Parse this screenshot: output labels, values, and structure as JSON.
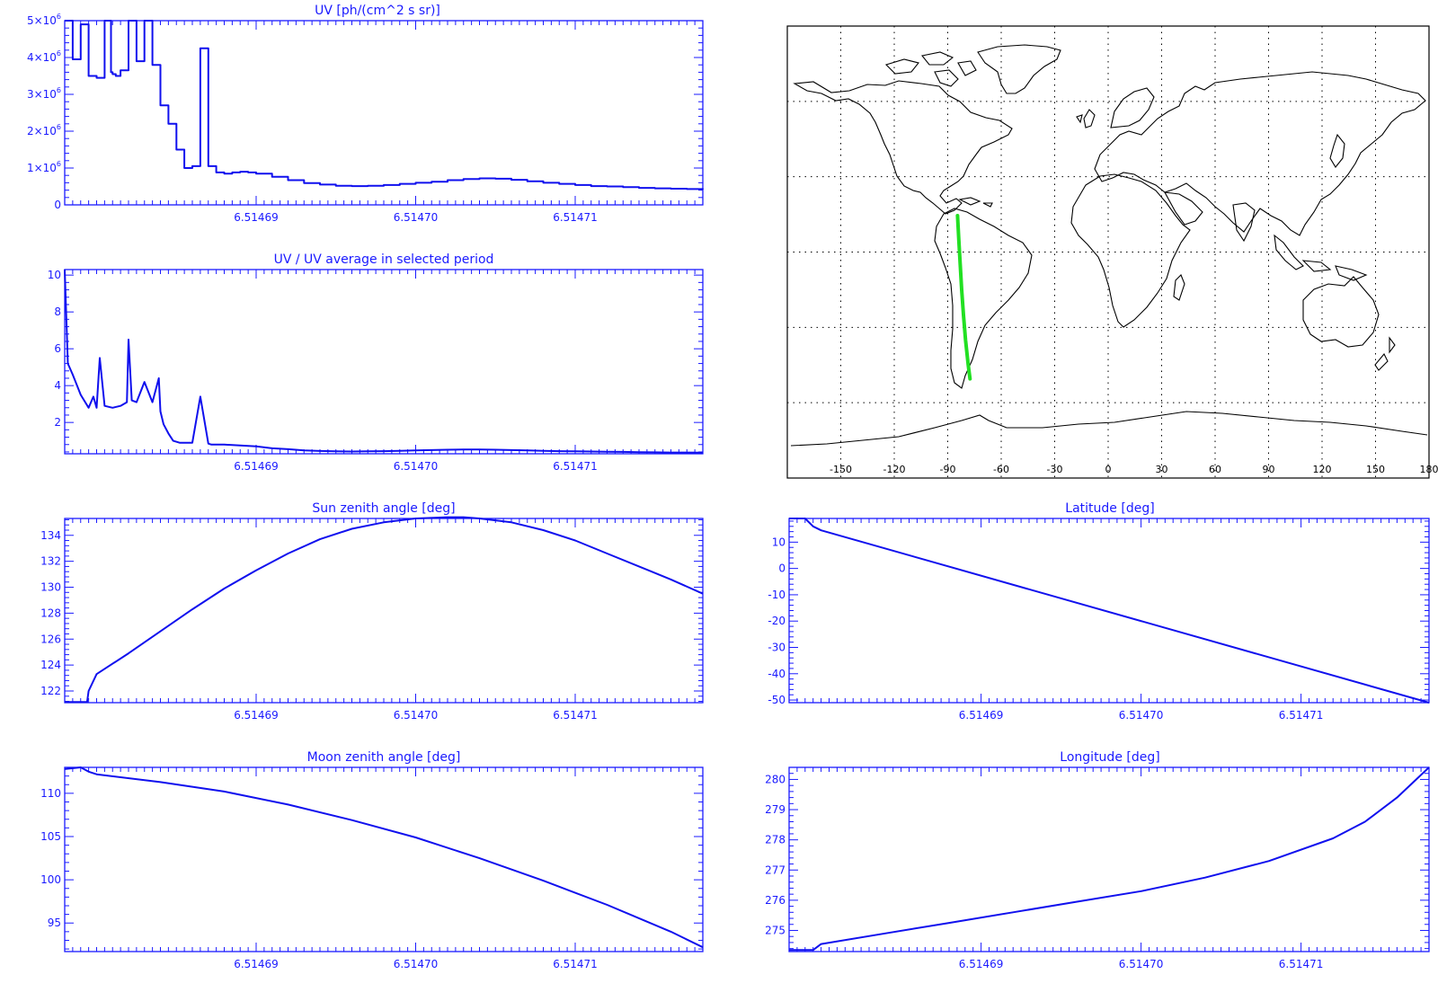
{
  "colors": {
    "axis": "#1a1aff",
    "line": "#1010ee",
    "map_line": "#000000",
    "track": "#22e022",
    "background": "#ffffff"
  },
  "chart_data": [
    {
      "id": "uv",
      "type": "line",
      "title": "UV [ph/(cm^2 s sr)]",
      "xlim": [
        6.514678,
        6.514718
      ],
      "ylim": [
        0,
        5000000
      ],
      "xticks": [
        6.51469,
        6.5147,
        6.51471
      ],
      "xtick_labels": [
        "6.51469",
        "6.51470",
        "6.51471"
      ],
      "yticks": [
        0,
        1000000,
        2000000,
        3000000,
        4000000,
        5000000
      ],
      "ytick_labels": [
        {
          "base": "0",
          "exp": ""
        },
        {
          "base": "1×10",
          "exp": "6"
        },
        {
          "base": "2×10",
          "exp": "6"
        },
        {
          "base": "3×10",
          "exp": "6"
        },
        {
          "base": "4×10",
          "exp": "6"
        },
        {
          "base": "5×10",
          "exp": "6"
        }
      ],
      "step": true,
      "series": [
        {
          "x": [
            6.514678,
            6.5146785,
            6.514679,
            6.5146795,
            6.51468,
            6.5146805,
            6.5146809,
            6.514681,
            6.5146812,
            6.5146815,
            6.514682,
            6.5146825,
            6.514683,
            6.5146835,
            6.514684,
            6.5146845,
            6.514685,
            6.5146855,
            6.514686,
            6.5146865,
            6.514687,
            6.5146875,
            6.514688,
            6.5146885,
            6.514689,
            6.5146895,
            6.51469,
            6.514691,
            6.514692,
            6.514693,
            6.514694,
            6.514695,
            6.514696,
            6.514697,
            6.514698,
            6.514699,
            6.5147,
            6.514701,
            6.514702,
            6.514703,
            6.514704,
            6.514705,
            6.514706,
            6.514707,
            6.514708,
            6.514709,
            6.51471,
            6.514711,
            6.514712,
            6.514713,
            6.514714,
            6.514715,
            6.514716,
            6.514717,
            6.514718
          ],
          "y": [
            5000000,
            3950000,
            4900000,
            3500000,
            3450000,
            5000000,
            3600000,
            3550000,
            3500000,
            3650000,
            5000000,
            3900000,
            5000000,
            3800000,
            2700000,
            2200000,
            1500000,
            1000000,
            1050000,
            4250000,
            1050000,
            880000,
            850000,
            880000,
            900000,
            880000,
            850000,
            760000,
            670000,
            590000,
            550000,
            520000,
            510000,
            520000,
            540000,
            570000,
            600000,
            630000,
            670000,
            700000,
            720000,
            710000,
            680000,
            640000,
            600000,
            570000,
            540000,
            510000,
            500000,
            480000,
            460000,
            450000,
            440000,
            430000,
            420000
          ]
        }
      ]
    },
    {
      "id": "uv_ratio",
      "type": "line",
      "title": "UV / UV average in selected period",
      "xlim": [
        6.514678,
        6.514718
      ],
      "ylim": [
        0.3,
        10.3
      ],
      "xticks": [
        6.51469,
        6.5147,
        6.51471
      ],
      "xtick_labels": [
        "6.51469",
        "6.51470",
        "6.51471"
      ],
      "yticks": [
        2,
        4,
        6,
        8,
        10
      ],
      "ytick_labels": [
        "2",
        "4",
        "6",
        "8",
        "10"
      ],
      "series": [
        {
          "x": [
            6.514678,
            6.5146782,
            6.5146785,
            6.514679,
            6.5146795,
            6.5146798,
            6.51468,
            6.5146802,
            6.5146805,
            6.514681,
            6.5146815,
            6.5146819,
            6.514682,
            6.5146822,
            6.5146825,
            6.514683,
            6.5146835,
            6.5146839,
            6.514684,
            6.5146842,
            6.5146845,
            6.5146848,
            6.5146852,
            6.5146855,
            6.514686,
            6.5146865,
            6.514687,
            6.5146872,
            6.5146875,
            6.514688,
            6.514689,
            6.51469,
            6.514691,
            6.514692,
            6.514693,
            6.514694,
            6.514695,
            6.514696,
            6.514697,
            6.514698,
            6.514699,
            6.5147,
            6.514701,
            6.514702,
            6.514703,
            6.514704,
            6.514705,
            6.514706,
            6.514707,
            6.514708,
            6.514709,
            6.51471,
            6.514711,
            6.514712,
            6.514713,
            6.514714,
            6.514715,
            6.514716,
            6.514717,
            6.514718
          ],
          "y": [
            10.3,
            5.2,
            4.6,
            3.5,
            2.8,
            3.4,
            2.8,
            5.5,
            2.9,
            2.8,
            2.9,
            3.1,
            6.5,
            3.2,
            3.1,
            4.2,
            3.1,
            4.4,
            2.6,
            1.9,
            1.4,
            1.0,
            0.9,
            0.9,
            0.9,
            3.4,
            0.85,
            0.8,
            0.8,
            0.8,
            0.75,
            0.7,
            0.6,
            0.55,
            0.48,
            0.45,
            0.43,
            0.42,
            0.43,
            0.44,
            0.46,
            0.48,
            0.5,
            0.52,
            0.53,
            0.53,
            0.52,
            0.5,
            0.48,
            0.46,
            0.44,
            0.43,
            0.42,
            0.41,
            0.4,
            0.39,
            0.38,
            0.37,
            0.37,
            0.36
          ]
        }
      ]
    },
    {
      "id": "sza",
      "type": "line",
      "title": "Sun zenith angle [deg]",
      "xlim": [
        6.514678,
        6.514718
      ],
      "ylim": [
        121.1,
        135.3
      ],
      "xticks": [
        6.51469,
        6.5147,
        6.51471
      ],
      "xtick_labels": [
        "6.51469",
        "6.51470",
        "6.51471"
      ],
      "yticks": [
        122,
        124,
        126,
        128,
        130,
        132,
        134
      ],
      "ytick_labels": [
        "122",
        "124",
        "126",
        "128",
        "130",
        "132",
        "134"
      ],
      "series": [
        {
          "x": [
            6.514678,
            6.5146794,
            6.5146795,
            6.51468,
            6.514682,
            6.514684,
            6.514686,
            6.514688,
            6.51469,
            6.514692,
            6.514694,
            6.514696,
            6.514698,
            6.5147,
            6.514702,
            6.514703,
            6.514704,
            6.514706,
            6.514708,
            6.51471,
            6.514712,
            6.514714,
            6.514716,
            6.514718
          ],
          "y": [
            121.15,
            121.15,
            122.0,
            123.3,
            124.9,
            126.6,
            128.3,
            129.9,
            131.3,
            132.6,
            133.7,
            134.5,
            135.0,
            135.3,
            135.4,
            135.4,
            135.3,
            135.0,
            134.4,
            133.6,
            132.6,
            131.6,
            130.6,
            129.5
          ]
        }
      ]
    },
    {
      "id": "mza",
      "type": "line",
      "title": "Moon zenith angle [deg]",
      "xlim": [
        6.514678,
        6.514718
      ],
      "ylim": [
        91.7,
        113.0
      ],
      "xticks": [
        6.51469,
        6.5147,
        6.51471
      ],
      "xtick_labels": [
        "6.51469",
        "6.51470",
        "6.51471"
      ],
      "yticks": [
        95,
        100,
        105,
        110
      ],
      "ytick_labels": [
        "95",
        "100",
        "105",
        "110"
      ],
      "series": [
        {
          "x": [
            6.514678,
            6.514679,
            6.5146795,
            6.51468,
            6.514684,
            6.514688,
            6.514692,
            6.514696,
            6.5147,
            6.514704,
            6.514708,
            6.514712,
            6.514716,
            6.514718
          ],
          "y": [
            112.8,
            113.0,
            112.5,
            112.2,
            111.3,
            110.2,
            108.7,
            106.9,
            104.9,
            102.5,
            99.9,
            97.1,
            94.0,
            92.2
          ]
        }
      ]
    },
    {
      "id": "lat",
      "type": "line",
      "title": "Latitude [deg]",
      "xlim": [
        6.514678,
        6.514718
      ],
      "ylim": [
        -51,
        19
      ],
      "xticks": [
        6.51469,
        6.5147,
        6.51471
      ],
      "xtick_labels": [
        "6.51469",
        "6.51470",
        "6.51471"
      ],
      "yticks": [
        -50,
        -40,
        -30,
        -20,
        -10,
        0,
        10
      ],
      "ytick_labels": [
        "-50",
        "-40",
        "-30",
        "-20",
        "-10",
        "0",
        "10"
      ],
      "series": [
        {
          "x": [
            6.514678,
            6.514679,
            6.5146795,
            6.51468,
            6.514718
          ],
          "y": [
            19,
            19,
            16,
            14.5,
            -51
          ]
        }
      ]
    },
    {
      "id": "lon",
      "type": "line",
      "title": "Longitude [deg]",
      "xlim": [
        6.514678,
        6.514718
      ],
      "ylim": [
        274.3,
        280.4
      ],
      "xticks": [
        6.51469,
        6.5147,
        6.51471
      ],
      "xtick_labels": [
        "6.51469",
        "6.51470",
        "6.51471"
      ],
      "yticks": [
        275,
        276,
        277,
        278,
        279,
        280
      ],
      "ytick_labels": [
        "275",
        "276",
        "277",
        "278",
        "279",
        "280"
      ],
      "series": [
        {
          "x": [
            6.514678,
            6.5146795,
            6.51468,
            6.514684,
            6.514688,
            6.514692,
            6.514696,
            6.5147,
            6.514704,
            6.514708,
            6.514712,
            6.514714,
            6.514716,
            6.514718
          ],
          "y": [
            274.35,
            274.35,
            274.55,
            274.9,
            275.25,
            275.6,
            275.95,
            276.3,
            276.75,
            277.3,
            278.05,
            278.6,
            279.4,
            280.4
          ]
        }
      ]
    }
  ],
  "map": {
    "type": "map",
    "xlim": [
      -180,
      180
    ],
    "ylim": [
      -90,
      90
    ],
    "grid": true,
    "xticks": [
      -150,
      -120,
      -90,
      -60,
      -30,
      0,
      30,
      60,
      90,
      120,
      150,
      180
    ],
    "xtick_labels": [
      "-150",
      "-120",
      "-90",
      "-60",
      "-30",
      "0",
      "30",
      "60",
      "90",
      "120",
      "150",
      "180"
    ],
    "track": {
      "lon": [
        -84.5,
        -83.8,
        -83.0,
        -82.2,
        -81.2,
        -80.0,
        -78.5,
        -77.5
      ],
      "lat": [
        14.5,
        5.0,
        -5.0,
        -15.0,
        -25.0,
        -35.0,
        -45.0,
        -50.5
      ]
    }
  }
}
